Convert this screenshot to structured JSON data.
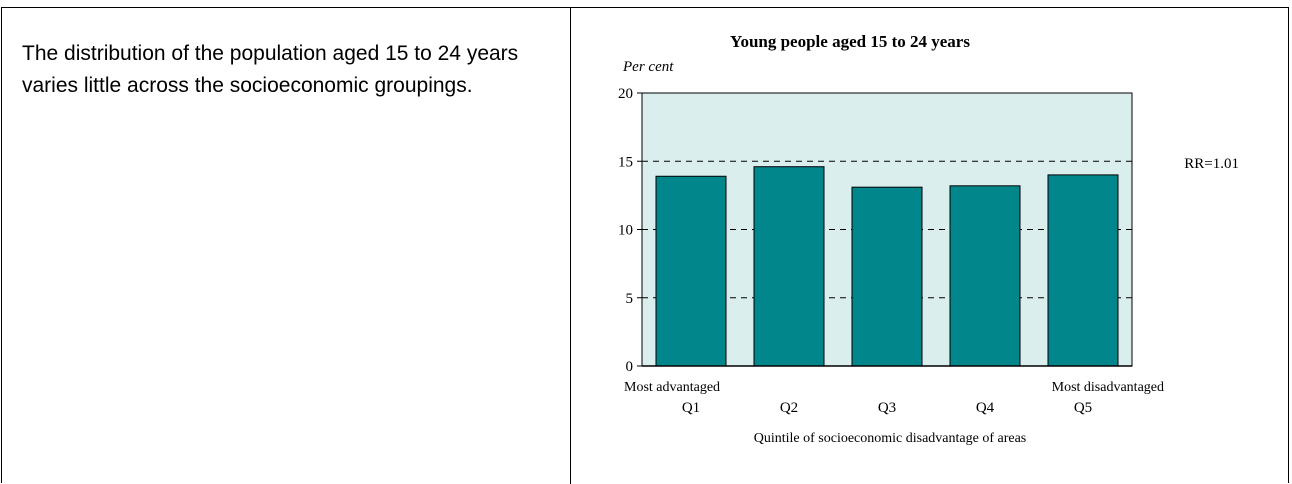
{
  "description": "The distribution of the population aged 15 to 24 years varies little across the socioeconomic groupings.",
  "chart_data": {
    "type": "bar",
    "title": "Young people aged 15 to 24 years",
    "ylabel": "Per cent",
    "xlabel": "Quintile of socioeconomic disadvantage of areas",
    "categories": [
      "Q1",
      "Q2",
      "Q3",
      "Q4",
      "Q5"
    ],
    "values": [
      13.9,
      14.6,
      13.1,
      13.2,
      14.0
    ],
    "ylim": [
      0,
      20
    ],
    "yticks": [
      0,
      5,
      10,
      15,
      20
    ],
    "category_notes": [
      "Most advantaged",
      "Most disadvantaged"
    ],
    "annotation": "RR=1.01",
    "grid": "dashed horizontal",
    "bar_color": "#00868b",
    "plot_background": "#daeeee"
  }
}
